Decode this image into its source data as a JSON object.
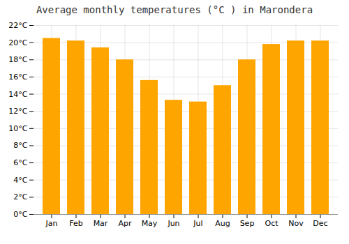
{
  "chart_data": {
    "type": "bar",
    "title": "Average monthly temperatures (°C ) in Marondera",
    "categories": [
      "Jan",
      "Feb",
      "Mar",
      "Apr",
      "May",
      "Jun",
      "Jul",
      "Aug",
      "Sep",
      "Oct",
      "Nov",
      "Dec"
    ],
    "values": [
      20.5,
      20.2,
      19.4,
      18.0,
      15.6,
      13.3,
      13.1,
      15.0,
      18.0,
      19.8,
      20.2,
      20.2
    ],
    "color": "#FFA500",
    "ylim": [
      0,
      22
    ],
    "yticks": [
      {
        "value": 0,
        "label": "0°C"
      },
      {
        "value": 2,
        "label": "2°C"
      },
      {
        "value": 4,
        "label": "4°C"
      },
      {
        "value": 6,
        "label": "6°C"
      },
      {
        "value": 8,
        "label": "8°C"
      },
      {
        "value": 10,
        "label": "10°C"
      },
      {
        "value": 12,
        "label": "12°C"
      },
      {
        "value": 14,
        "label": "14°C"
      },
      {
        "value": 16,
        "label": "16°C"
      },
      {
        "value": 18,
        "label": "18°C"
      },
      {
        "value": 20,
        "label": "20°C"
      },
      {
        "value": 22,
        "label": "22°C"
      }
    ],
    "grid": true
  }
}
